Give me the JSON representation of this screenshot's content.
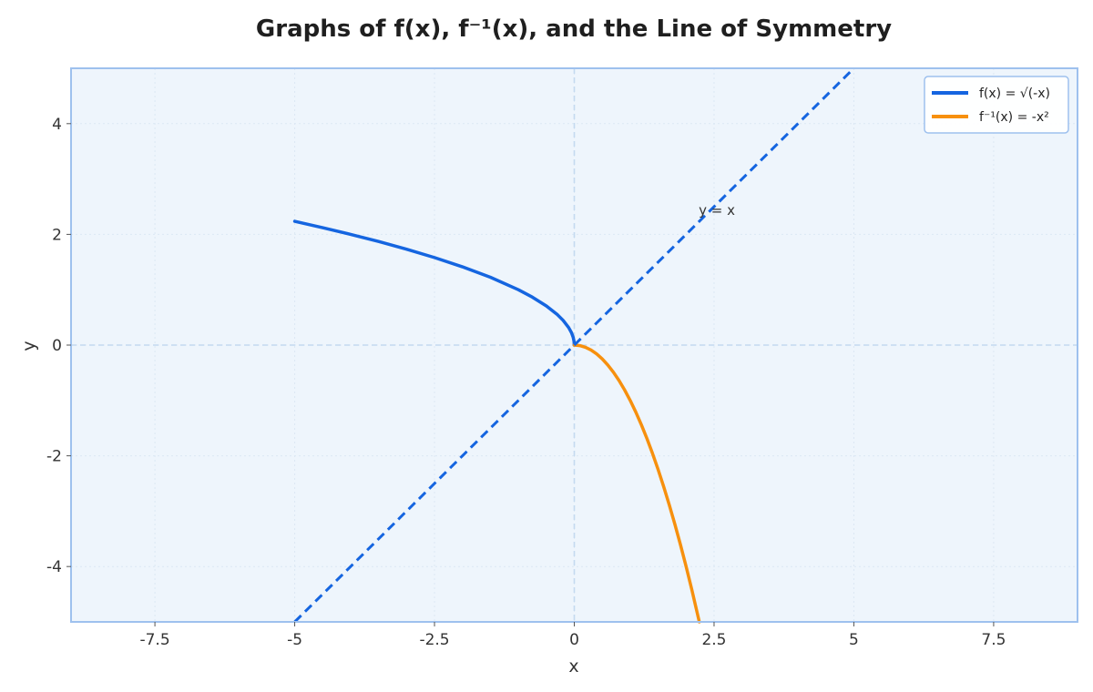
{
  "chart_data": {
    "type": "line",
    "title": "Graphs of f(x), f⁻¹(x), and the Line of Symmetry",
    "xlabel": "x",
    "ylabel": "y",
    "xlim": [
      -9,
      9
    ],
    "ylim": [
      -5,
      5
    ],
    "x_ticks": [
      -7.5,
      -5,
      -2.5,
      0,
      2.5,
      5,
      7.5
    ],
    "x_tick_labels": [
      "-7.5",
      "-5",
      "-2.5",
      "0",
      "2.5",
      "5",
      "7.5"
    ],
    "y_ticks": [
      -4,
      -2,
      0,
      2,
      4
    ],
    "y_tick_labels": [
      "-4",
      "-2",
      "0",
      "2",
      "4"
    ],
    "grid": true,
    "legend_position": "top-right",
    "series": [
      {
        "name": "f(x) = √(-x)",
        "color": "#1565e0",
        "style": "solid",
        "x": [
          -5,
          -4.5,
          -4,
          -3.5,
          -3,
          -2.5,
          -2,
          -1.5,
          -1,
          -0.75,
          -0.5,
          -0.3,
          -0.2,
          -0.1,
          -0.05,
          -0.02,
          -0.005,
          0
        ],
        "y": [
          2.236,
          2.121,
          2.0,
          1.871,
          1.732,
          1.581,
          1.414,
          1.225,
          1.0,
          0.866,
          0.707,
          0.548,
          0.447,
          0.316,
          0.224,
          0.141,
          0.071,
          0
        ]
      },
      {
        "name": "f⁻¹(x) = -x²",
        "color": "#f7900e",
        "style": "solid",
        "x": [
          0,
          0.1,
          0.2,
          0.3,
          0.4,
          0.5,
          0.6,
          0.7,
          0.8,
          0.9,
          1.0,
          1.1,
          1.2,
          1.3,
          1.4,
          1.5,
          1.6,
          1.7,
          1.8,
          1.9,
          2.0,
          2.1,
          2.236
        ],
        "y": [
          0,
          -0.01,
          -0.04,
          -0.09,
          -0.16,
          -0.25,
          -0.36,
          -0.49,
          -0.64,
          -0.81,
          -1.0,
          -1.21,
          -1.44,
          -1.69,
          -1.96,
          -2.25,
          -2.56,
          -2.89,
          -3.24,
          -3.61,
          -4.0,
          -4.41,
          -5.0
        ]
      },
      {
        "color": "#1565e0",
        "style": "dashed",
        "x": [
          -5,
          5
        ],
        "y": [
          -5,
          5
        ]
      }
    ],
    "annotations": [
      {
        "text": "y = x",
        "x": 2.55,
        "y": 2.35
      }
    ],
    "colors": {
      "plot_background": "#eef5fc",
      "plot_border": "#9ec1ee",
      "zero_lines": "#c4daf0",
      "grid": "#dce8f4"
    }
  }
}
